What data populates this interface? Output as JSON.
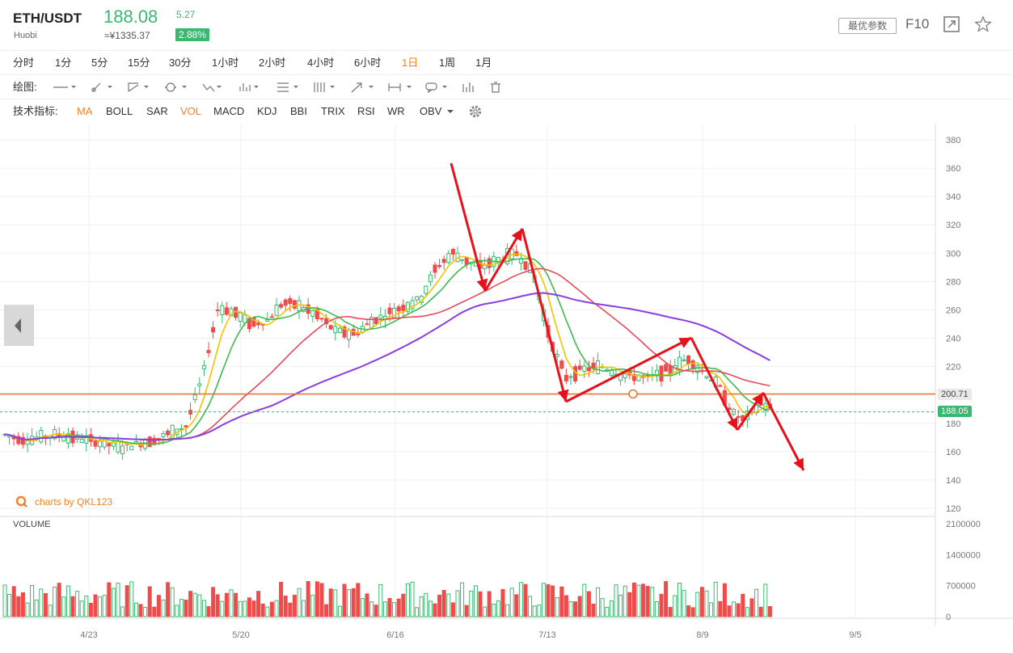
{
  "header": {
    "symbol": "ETH/USDT",
    "exchange": "Huobi",
    "price": "188.08",
    "cny_price": "≈¥1335.37",
    "change": "5.27",
    "change_pct": "2.88%",
    "best_params_label": "最优参数",
    "f10_label": "F10",
    "up_color": "#3bb870",
    "down_color": "#f04a4a",
    "accent_color": "#f5822a"
  },
  "periods": [
    "分时",
    "1分",
    "5分",
    "15分",
    "30分",
    "1小时",
    "2小时",
    "4小时",
    "6小时",
    "1日",
    "1周",
    "1月"
  ],
  "active_period": "1日",
  "drawing_toolbar": {
    "label": "绘图:",
    "tools": [
      "line-tool-icon",
      "pen-tool-icon",
      "ray-tool-icon",
      "circle-tool-icon",
      "wave-tool-icon",
      "pattern-tool-icon",
      "fib-tool-icon",
      "channel-tool-icon",
      "arrow-tool-icon",
      "measure-tool-icon",
      "comment-tool-icon",
      "bars-tool-icon",
      "trash-icon"
    ]
  },
  "indicators": {
    "label": "技术指标:",
    "items": [
      "MA",
      "BOLL",
      "SAR",
      "VOL",
      "MACD",
      "KDJ",
      "BBI",
      "TRIX",
      "RSI",
      "WR",
      "OBV"
    ],
    "active": [
      "MA",
      "VOL"
    ]
  },
  "watermark": "charts by QKL123",
  "volume_label": "VOLUME",
  "price_tags": {
    "line_value": "200.71",
    "current_value": "188.05"
  },
  "chart_data": {
    "type": "candlestick",
    "y_ticks": [
      380,
      360,
      340,
      320,
      300,
      280,
      260,
      240,
      220,
      200,
      180,
      160,
      140,
      120
    ],
    "ylim": [
      120,
      385
    ],
    "volume_ticks": [
      "2100000",
      "1400000",
      "700000",
      "0"
    ],
    "volume_ylim": [
      0,
      2100000
    ],
    "x_ticks": [
      "4/23",
      "5/20",
      "6/16",
      "7/13",
      "8/9",
      "9/5"
    ],
    "horizontal_line": 200.71,
    "current_price_line": 188.05,
    "ma_lines": [
      "yellow",
      "green",
      "red",
      "purple"
    ],
    "grid": true
  }
}
